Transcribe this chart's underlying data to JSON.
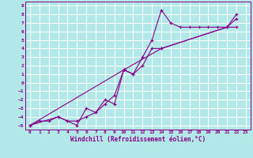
{
  "xlabel": "Windchill (Refroidissement éolien,°C)",
  "bg_color": "#b2e8e8",
  "grid_color": "#ffffff",
  "line_color": "#880088",
  "marker_color": "#880088",
  "xlim": [
    -0.5,
    23.5
  ],
  "ylim": [
    -5.5,
    9.5
  ],
  "xticks": [
    0,
    1,
    2,
    3,
    4,
    5,
    6,
    7,
    8,
    9,
    10,
    11,
    12,
    13,
    14,
    15,
    16,
    17,
    18,
    19,
    20,
    21,
    22,
    23
  ],
  "yticks": [
    -5,
    -4,
    -3,
    -2,
    -1,
    0,
    1,
    2,
    3,
    4,
    5,
    6,
    7,
    8,
    9
  ],
  "line1_x": [
    0,
    1,
    2,
    3,
    4,
    5,
    6,
    7,
    8,
    9,
    10,
    11,
    12,
    13,
    14,
    15,
    16,
    17,
    18,
    19,
    20,
    21,
    22
  ],
  "line1_y": [
    -5,
    -4.5,
    -4.5,
    -4,
    -4.5,
    -5,
    -3,
    -3.5,
    -2.5,
    -1.5,
    1.5,
    1,
    3,
    5,
    8.5,
    7,
    6.5,
    6.5,
    6.5,
    6.5,
    6.5,
    6.5,
    8
  ],
  "line2_x": [
    0,
    3,
    4,
    5,
    6,
    7,
    8,
    9,
    10,
    11,
    12,
    13,
    14,
    21,
    22
  ],
  "line2_y": [
    -5,
    -4,
    -4.5,
    -4.5,
    -4,
    -3.5,
    -2,
    -2.5,
    1.5,
    1,
    2,
    4,
    4,
    6.5,
    7.5
  ],
  "line3_x": [
    0,
    10,
    14,
    21,
    22
  ],
  "line3_y": [
    -5,
    1.5,
    4,
    6.5,
    6.5
  ]
}
